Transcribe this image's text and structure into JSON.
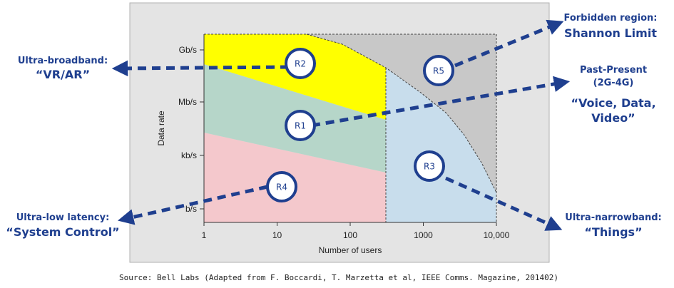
{
  "chart_data": {
    "type": "area",
    "title": "",
    "xlabel": "Number of users",
    "ylabel": "Data rate",
    "x_scale": "log",
    "xlim": [
      1,
      10000
    ],
    "x_ticks": [
      {
        "value": 1,
        "label": "1"
      },
      {
        "value": 10,
        "label": "10"
      },
      {
        "value": 100,
        "label": "100"
      },
      {
        "value": 1000,
        "label": "1000"
      },
      {
        "value": 10000,
        "label": "10,000"
      }
    ],
    "y_ticks": [
      "b/s",
      "kb/s",
      "Mb/s",
      "Gb/s"
    ],
    "grid": false,
    "regions": [
      {
        "id": "R1",
        "label": "R1",
        "color": "#b6d6c9",
        "description": "Past-Present (2G-4G) “Voice, Data, Video”"
      },
      {
        "id": "R2",
        "label": "R2",
        "color": "#ffff00",
        "description": "Ultra-broadband: “VR/AR”"
      },
      {
        "id": "R3",
        "label": "R3",
        "color": "#c8ddec",
        "description": "Ultra-narrowband: “Things”"
      },
      {
        "id": "R4",
        "label": "R4",
        "color": "#f4c8cc",
        "description": "Ultra-low latency: “System Control”"
      },
      {
        "id": "R5",
        "label": "R5",
        "color": "#c8c8c8",
        "description": "Forbidden region: Shannon Limit"
      }
    ]
  },
  "annotations": {
    "broadband": {
      "line1": "Ultra-broadband:",
      "line2": "“VR/AR”"
    },
    "forbidden": {
      "line1": "Forbidden region:",
      "line2": "Shannon Limit"
    },
    "past": {
      "line1": "Past-Present",
      "line2": "(2G-4G)",
      "line3": "“Voice, Data,",
      "line4": "Video”"
    },
    "latency": {
      "line1": "Ultra-low latency:",
      "line2": "“System Control”"
    },
    "narrowband": {
      "line1": "Ultra-narrowband:",
      "line2": "“Things”"
    }
  },
  "source": "Source: Bell Labs (Adapted from F. Boccardi, T. Marzetta et al, IEEE Comms. Magazine, 201402)",
  "colors": {
    "accent": "#1f3f8f",
    "panel": "#e4e4e4",
    "dash": "#555555"
  }
}
